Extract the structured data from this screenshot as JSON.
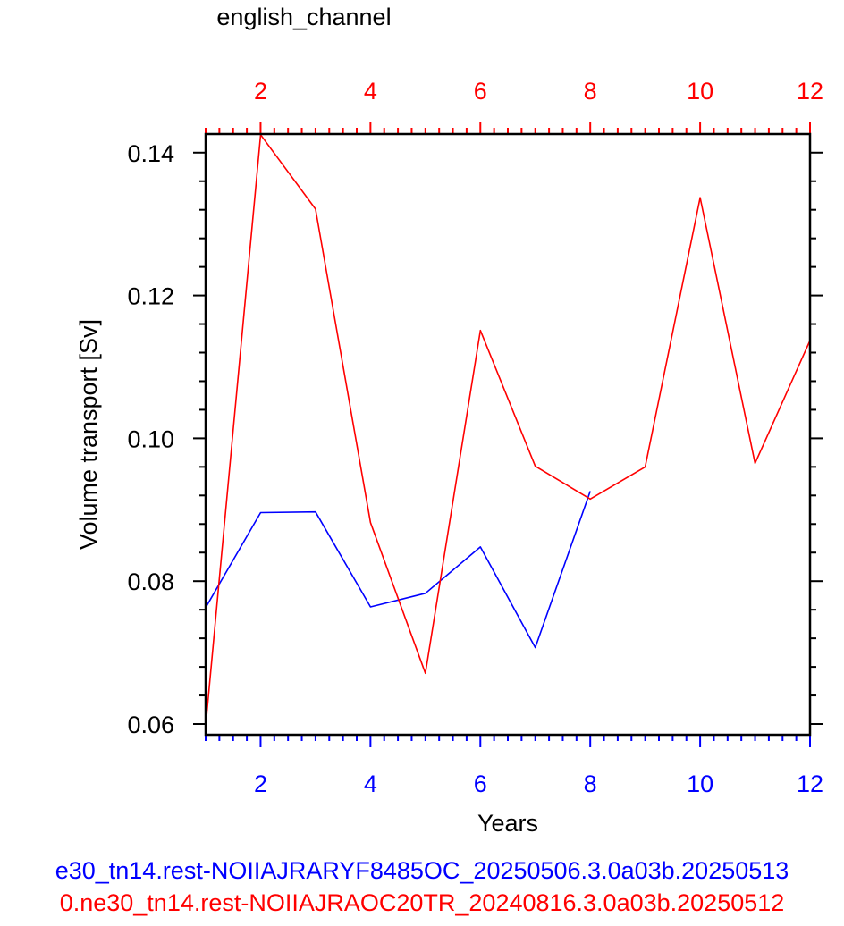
{
  "chart_data": {
    "type": "line",
    "title": "english_channel",
    "xlabel": "Years",
    "ylabel": "Volume transport [Sv]",
    "xlim": [
      1,
      12
    ],
    "ylim": [
      0.0585,
      0.1426
    ],
    "x_ticks": [
      2,
      4,
      6,
      8,
      10,
      12
    ],
    "y_ticks": [
      0.06,
      0.08,
      0.1,
      0.12,
      0.14
    ],
    "y_tick_labels": [
      "0.06",
      "0.08",
      "0.10",
      "0.12",
      "0.14"
    ],
    "grid": false,
    "series": [
      {
        "name": "e30_tn14.rest-NOIIAJRARYF8485OC_20250506.3.0a03b.20250513",
        "color": "#0000ff",
        "x": [
          1,
          2,
          3,
          4,
          5,
          6,
          7,
          8
        ],
        "values": [
          0.0763,
          0.0896,
          0.0897,
          0.0764,
          0.0783,
          0.0848,
          0.0707,
          0.0926
        ]
      },
      {
        "name": "0.ne30_tn14.rest-NOIIAJRAOC20TR_20240816.3.0a03b.20250512",
        "color": "#ff0000",
        "x": [
          1,
          2,
          3,
          4,
          5,
          6,
          7,
          8,
          9,
          10,
          11,
          12
        ],
        "values": [
          0.0597,
          0.1425,
          0.1321,
          0.0882,
          0.0671,
          0.1151,
          0.0961,
          0.0915,
          0.096,
          0.1337,
          0.0965,
          0.1137
        ]
      }
    ]
  },
  "captions": [
    "e30_tn14.rest-NOIIAJRARYF8485OC_20250506.3.0a03b.20250513",
    "0.ne30_tn14.rest-NOIIAJRAOC20TR_20240816.3.0a03b.20250512"
  ]
}
